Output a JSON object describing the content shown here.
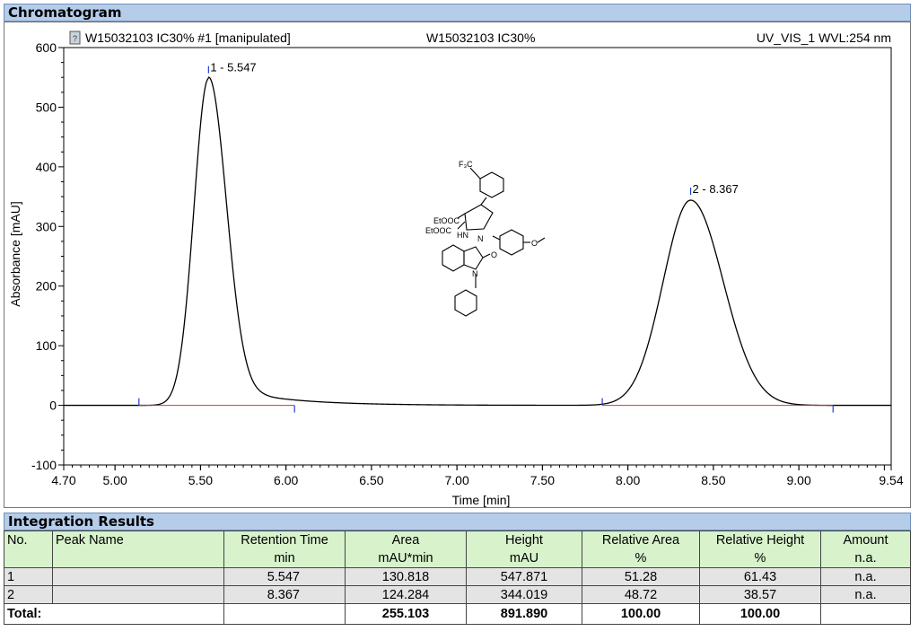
{
  "chromatogram_header": "Chromatogram",
  "integration_header": "Integration Results",
  "chart_data": {
    "type": "line",
    "sample_label": "W15032103 IC30% #1 [manipulated]",
    "center_label": "W15032103 IC30%",
    "detector_label": "UV_VIS_1 WVL:254 nm",
    "xlabel": "Time [min]",
    "ylabel": "Absorbance [mAU]",
    "xlim": [
      4.7,
      9.54
    ],
    "ylim": [
      -100,
      600
    ],
    "x_ticks": [
      "4.70",
      "5.00",
      "5.50",
      "6.00",
      "6.50",
      "7.00",
      "7.50",
      "8.00",
      "8.50",
      "9.00",
      "9.54"
    ],
    "x_tick_values": [
      4.7,
      5.0,
      5.5,
      6.0,
      6.5,
      7.0,
      7.5,
      8.0,
      8.5,
      9.0,
      9.54
    ],
    "y_ticks": [
      "-100",
      "0",
      "100",
      "200",
      "300",
      "400",
      "500",
      "600"
    ],
    "y_tick_values": [
      -100,
      0,
      100,
      200,
      300,
      400,
      500,
      600
    ],
    "peaks": [
      {
        "label": "1 - 5.547",
        "time": 5.547,
        "height": 547.871
      },
      {
        "label": "2 - 8.367",
        "time": 8.367,
        "height": 344.019
      }
    ],
    "baselines": [
      {
        "x": [
          5.14,
          6.05
        ],
        "y": [
          0,
          0
        ]
      },
      {
        "x": [
          7.85,
          9.2
        ],
        "y": [
          0,
          0
        ]
      }
    ],
    "colors": {
      "signal": "#000000",
      "baseline": "#e03030",
      "marker": "#1f3fd0"
    }
  },
  "table": {
    "headers": [
      [
        "No.",
        ""
      ],
      [
        "Peak Name",
        ""
      ],
      [
        "Retention Time",
        "min"
      ],
      [
        "Area",
        "mAU*min"
      ],
      [
        "Height",
        "mAU"
      ],
      [
        "Relative Area",
        "%"
      ],
      [
        "Relative Height",
        "%"
      ],
      [
        "Amount",
        "n.a."
      ]
    ],
    "rows": [
      [
        "1",
        "",
        "5.547",
        "130.818",
        "547.871",
        "51.28",
        "61.43",
        "n.a."
      ],
      [
        "2",
        "",
        "8.367",
        "124.284",
        "344.019",
        "48.72",
        "38.57",
        "n.a."
      ]
    ],
    "total": {
      "label": "Total:",
      "area": "255.103",
      "height": "891.890",
      "rel_area": "100.00",
      "rel_height": "100.00"
    }
  },
  "structure_labels": {
    "cf3": "F₃C",
    "ester1": "EtOOC",
    "ester2": "EtOOC",
    "nh": "HN",
    "n1": "N",
    "n2": "N",
    "o_carbonyl": "O",
    "o_methoxy": "O"
  }
}
